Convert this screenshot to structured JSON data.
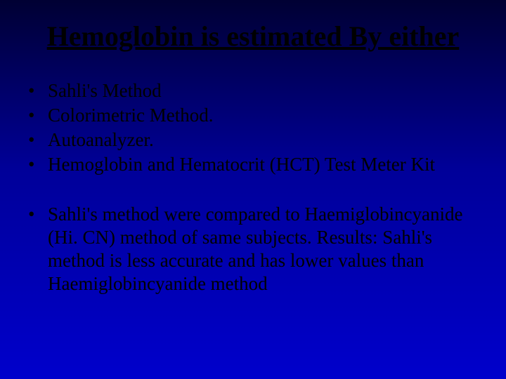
{
  "slide": {
    "title": "Hemoglobin is estimated By either",
    "group1": [
      "Sahli's Method",
      "Colorimetric Method.",
      "Autoanalyzer.",
      "Hemoglobin and Hematocrit (HCT) Test Meter Kit"
    ],
    "group2": [
      "Sahli's method were compared to Haemiglobincyanide (Hi. CN) method of same subjects. Results: Sahli's method is less accurate and has lower values than Haemiglobincyanide method"
    ],
    "background_gradient": [
      "#000033",
      "#000099",
      "#0000cc"
    ],
    "text_color": "#000000",
    "title_fontsize": 40,
    "body_fontsize": 27,
    "font_family": "Times New Roman"
  }
}
